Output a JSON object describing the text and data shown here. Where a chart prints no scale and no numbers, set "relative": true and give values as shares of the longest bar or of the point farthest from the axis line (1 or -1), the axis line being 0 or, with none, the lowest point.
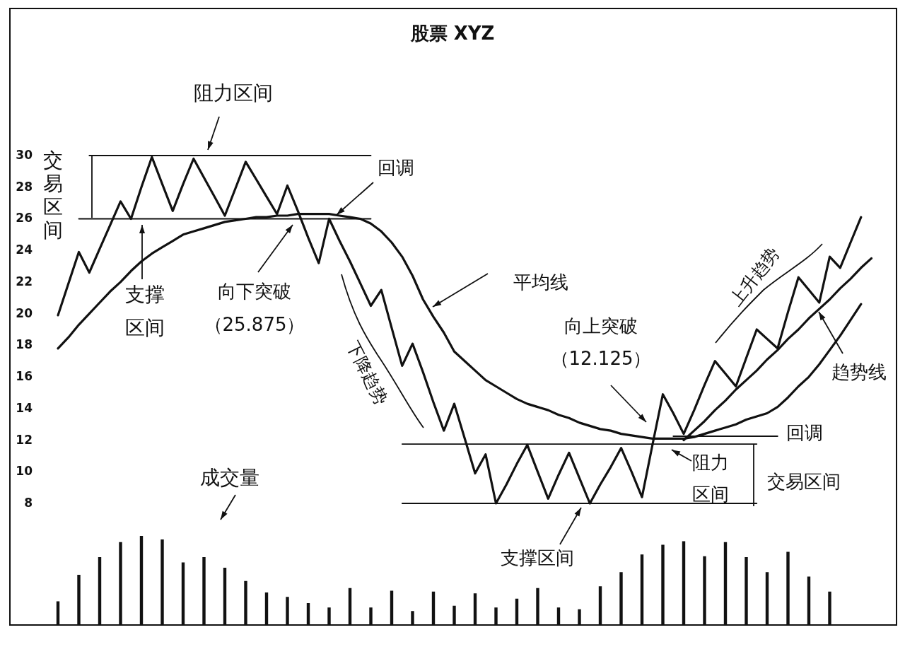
{
  "chart_data": [
    {
      "type": "line",
      "title": "股票 XYZ",
      "ylim": [
        8,
        30
      ],
      "yticks": [
        8,
        10,
        12,
        14,
        16,
        18,
        20,
        22,
        24,
        26,
        28,
        30
      ],
      "tick_labels": "y",
      "grid": false,
      "categories": [
        null,
        null,
        null,
        null,
        null,
        null,
        null,
        null,
        null,
        null,
        null,
        null,
        null,
        null,
        null,
        null,
        null,
        null,
        null,
        null,
        null,
        null,
        null,
        null,
        null,
        null,
        null,
        null,
        null,
        null,
        null,
        null,
        null,
        null,
        null,
        null,
        null,
        null,
        null,
        null,
        null,
        null,
        null,
        null,
        null,
        null,
        null,
        null,
        null,
        null,
        null,
        null,
        null,
        null,
        null,
        null,
        null,
        null,
        null,
        null,
        null,
        null,
        null,
        null,
        null,
        null,
        null,
        null,
        null,
        null,
        null,
        null,
        null,
        null,
        null,
        null,
        null,
        null,
        null
      ],
      "series": [
        {
          "type": "line",
          "color": "#111111",
          "values": [
            19.9,
            21.9,
            23.9,
            22.6,
            24.1,
            25.6,
            27.1,
            26.0,
            28.0,
            29.9,
            28.2,
            26.5,
            28.2,
            29.8,
            28.6,
            27.4,
            26.2,
            27.9,
            29.6,
            28.5,
            27.4,
            26.3,
            28.1,
            26.5,
            24.8,
            23.2,
            26.0,
            24.6,
            23.3,
            21.9,
            20.5,
            21.5,
            19.1,
            16.7,
            18.1,
            16.3,
            14.4,
            12.6,
            14.3,
            12.1,
            9.9,
            11.1,
            8.0,
            9.2,
            10.5,
            11.7,
            10.0,
            8.3,
            9.8,
            11.2,
            9.6,
            8.0,
            9.2,
            10.3,
            11.5,
            10.0,
            8.4,
            11.7,
            14.9,
            13.7,
            12.4,
            13.9,
            15.5,
            17.0,
            16.2,
            15.4,
            17.2,
            19.0,
            18.4,
            17.8,
            20.1,
            22.3,
            21.5,
            20.7,
            23.6,
            22.9,
            24.5,
            26.1,
            null
          ]
        },
        {
          "type": "line",
          "color": "#111111",
          "values": [
            17.8,
            18.5,
            19.3,
            20.0,
            20.7,
            21.4,
            22.0,
            22.7,
            23.3,
            23.8,
            24.2,
            24.6,
            25.0,
            25.2,
            25.4,
            25.6,
            25.8,
            25.9,
            26.0,
            26.1,
            26.1,
            26.2,
            26.2,
            26.3,
            26.3,
            26.3,
            26.3,
            26.2,
            26.1,
            26.0,
            25.7,
            25.2,
            24.5,
            23.6,
            22.4,
            20.9,
            19.8,
            18.8,
            17.6,
            17.0,
            16.4,
            15.8,
            15.4,
            15.0,
            14.6,
            14.3,
            14.1,
            13.9,
            13.6,
            13.4,
            13.1,
            12.9,
            12.7,
            12.6,
            12.4,
            12.3,
            12.2,
            12.1,
            12.1,
            12.1,
            12.1,
            12.2,
            12.4,
            12.6,
            12.8,
            13.0,
            13.3,
            13.5,
            13.7,
            14.1,
            14.7,
            15.4,
            16.0,
            16.8,
            17.7,
            18.6,
            19.6,
            20.6,
            null
          ]
        },
        {
          "type": "line",
          "color": "#111111",
          "values": [
            null,
            null,
            null,
            null,
            null,
            null,
            null,
            null,
            null,
            null,
            null,
            null,
            null,
            null,
            null,
            null,
            null,
            null,
            null,
            null,
            null,
            null,
            null,
            null,
            null,
            null,
            null,
            null,
            null,
            null,
            null,
            null,
            null,
            null,
            null,
            null,
            null,
            null,
            null,
            null,
            null,
            null,
            null,
            null,
            null,
            null,
            null,
            null,
            null,
            null,
            null,
            null,
            null,
            null,
            null,
            null,
            null,
            null,
            null,
            null,
            12.0,
            12.6,
            13.2,
            13.9,
            14.5,
            15.2,
            15.8,
            16.4,
            17.1,
            17.7,
            18.4,
            19.0,
            19.7,
            20.3,
            20.9,
            21.6,
            22.2,
            22.9,
            23.5
          ]
        },
        {
          "type": "line",
          "color": "#111111",
          "values": [
            null,
            null,
            null,
            30,
            30,
            30,
            30,
            30,
            30,
            30,
            30,
            30,
            30,
            30,
            30,
            30,
            30,
            30,
            30,
            30,
            30,
            30,
            30,
            30,
            30,
            30,
            30,
            30,
            30,
            30,
            30,
            null,
            null,
            null,
            null,
            null,
            null,
            null,
            null,
            null,
            null,
            null,
            null,
            null,
            null,
            null,
            null,
            null,
            null,
            null,
            null,
            null,
            null,
            null,
            null,
            null,
            null,
            null,
            null,
            null,
            null,
            null,
            null,
            null,
            null,
            null,
            null,
            null,
            null,
            null,
            null,
            null,
            null,
            null,
            null,
            null,
            null,
            null,
            null
          ]
        },
        {
          "type": "line",
          "color": "#111111",
          "values": [
            null,
            null,
            26,
            26,
            26,
            26,
            26,
            26,
            26,
            26,
            26,
            26,
            26,
            26,
            26,
            26,
            26,
            26,
            26,
            26,
            26,
            26,
            26,
            26,
            26,
            26,
            26,
            26,
            26,
            26,
            26,
            null,
            null,
            null,
            null,
            null,
            null,
            null,
            null,
            null,
            null,
            null,
            null,
            null,
            null,
            null,
            null,
            null,
            null,
            null,
            null,
            null,
            null,
            null,
            null,
            null,
            null,
            null,
            null,
            null,
            null,
            null,
            null,
            null,
            null,
            null,
            null,
            null,
            null,
            null,
            null,
            null,
            null,
            null,
            null,
            null,
            null,
            null,
            null
          ]
        },
        {
          "type": "line",
          "color": "#111111",
          "values": [
            null,
            null,
            null,
            null,
            null,
            null,
            null,
            null,
            null,
            null,
            null,
            null,
            null,
            null,
            null,
            null,
            null,
            null,
            null,
            null,
            null,
            null,
            null,
            null,
            null,
            null,
            null,
            null,
            null,
            null,
            null,
            null,
            null,
            11.75,
            11.75,
            11.75,
            11.75,
            11.75,
            11.75,
            11.75,
            11.75,
            11.75,
            11.75,
            11.75,
            11.75,
            11.75,
            11.75,
            11.75,
            11.75,
            11.75,
            11.75,
            11.75,
            11.75,
            11.75,
            11.75,
            11.75,
            11.75,
            11.75,
            11.75,
            11.75,
            11.75,
            11.75,
            11.75,
            11.75,
            11.75,
            11.75,
            11.75,
            11.75,
            null,
            null,
            null,
            null,
            null,
            null,
            null,
            null,
            null,
            null,
            null
          ]
        },
        {
          "type": "line",
          "color": "#111111",
          "values": [
            null,
            null,
            null,
            null,
            null,
            null,
            null,
            null,
            null,
            null,
            null,
            null,
            null,
            null,
            null,
            null,
            null,
            null,
            null,
            null,
            null,
            null,
            null,
            null,
            null,
            null,
            null,
            null,
            null,
            null,
            null,
            null,
            null,
            8,
            8,
            8,
            8,
            8,
            8,
            8,
            8,
            8,
            8,
            8,
            8,
            8,
            8,
            8,
            8,
            8,
            8,
            8,
            8,
            8,
            8,
            8,
            8,
            8,
            8,
            8,
            8,
            8,
            8,
            8,
            8,
            8,
            8,
            8,
            null,
            null,
            null,
            null,
            null,
            null,
            null,
            null,
            null,
            null,
            null
          ]
        },
        {
          "type": "line",
          "color": "#111111",
          "values": [
            null,
            null,
            null,
            null,
            null,
            null,
            null,
            null,
            null,
            null,
            null,
            null,
            null,
            null,
            null,
            null,
            null,
            null,
            null,
            null,
            null,
            null,
            null,
            null,
            null,
            null,
            null,
            null,
            null,
            null,
            null,
            null,
            null,
            null,
            null,
            null,
            null,
            null,
            null,
            null,
            null,
            null,
            null,
            null,
            null,
            null,
            null,
            null,
            null,
            null,
            null,
            null,
            null,
            null,
            null,
            null,
            null,
            null,
            null,
            12.25,
            12.25,
            12.25,
            12.25,
            12.25,
            12.25,
            12.25,
            12.25,
            12.25,
            12.25,
            12.25,
            null,
            null,
            null,
            null,
            null,
            null,
            null,
            null,
            null
          ]
        }
      ],
      "annotations": [
        {
          "text": "阻力区间",
          "y": 30
        },
        "交易区间",
        "回调",
        "支撑区间",
        "向下突破（25.875）",
        "下降趋势",
        "平均线",
        "向上突破（12.125）",
        "上升趋势",
        {
          "text": "趋势线",
          "y": 20.3
        },
        "回调",
        {
          "text": "阻力区间",
          "y": 11.75
        },
        "交易区间",
        {
          "text": "支撑区间",
          "y": 8
        }
      ]
    },
    {
      "type": "bar",
      "relative": true,
      "color": "#111111",
      "categories": [
        null,
        null,
        null,
        null,
        null,
        null,
        null,
        null,
        null,
        null,
        null,
        null,
        null,
        null,
        null,
        null,
        null,
        null,
        null,
        null,
        null,
        null,
        null,
        null,
        null,
        null,
        null,
        null,
        null,
        null,
        null,
        null,
        null,
        null,
        null,
        null,
        null,
        null
      ],
      "values": [
        0.26,
        0.56,
        0.76,
        0.93,
        1,
        0.96,
        0.7,
        0.76,
        0.64,
        0.49,
        0.36,
        0.31,
        0.24,
        0.19,
        0.41,
        0.19,
        0.38,
        0.15,
        0.37,
        0.21,
        0.35,
        0.19,
        0.29,
        0.41,
        0.19,
        0.17,
        0.43,
        0.59,
        0.79,
        0.9,
        0.94,
        0.77,
        0.93,
        0.76,
        0.59,
        0.82,
        0.54,
        0.37
      ],
      "annotations": [
        "成交量"
      ]
    }
  ]
}
